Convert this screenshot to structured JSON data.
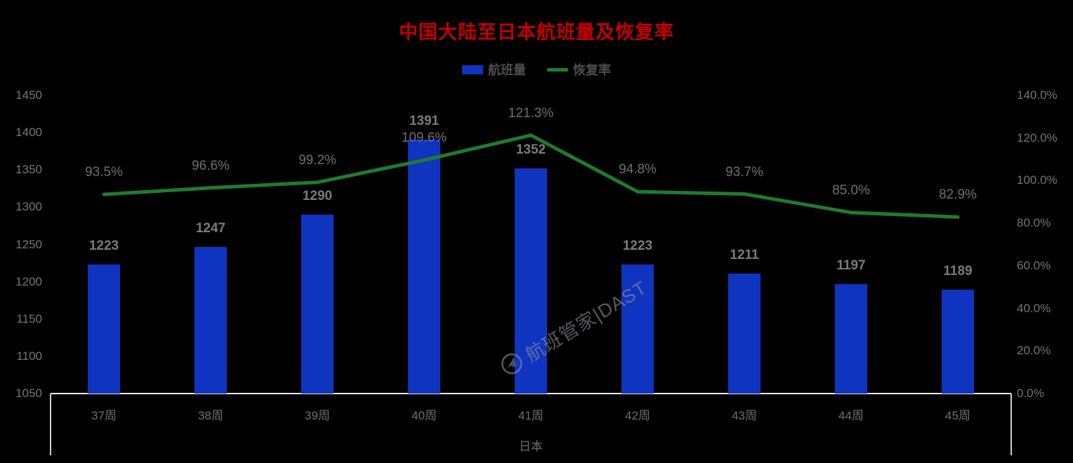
{
  "title": {
    "text": "中国大陆至日本航班量及恢复率",
    "color": "#c00000"
  },
  "legend": [
    {
      "label": "航班量",
      "type": "bar",
      "color": "#0F35C0"
    },
    {
      "label": "恢复率",
      "type": "line",
      "color": "#207A30"
    }
  ],
  "watermark": {
    "text": "航班管家|DAST"
  },
  "chart_data": {
    "type": "bar+line combo",
    "title": "中国大陆至日本航班量及恢复率",
    "categories": [
      "37周",
      "38周",
      "39周",
      "40周",
      "41周",
      "42周",
      "43周",
      "44周",
      "45周"
    ],
    "category_group_label": "日本",
    "series": [
      {
        "name": "航班量",
        "type": "bar",
        "axis": "left",
        "color": "#0F35C0",
        "values": [
          1223,
          1247,
          1290,
          1391,
          1352,
          1223,
          1211,
          1197,
          1189
        ],
        "labels": [
          "1223",
          "1247",
          "1290",
          "1391",
          "1352",
          "1223",
          "1211",
          "1197",
          "1189"
        ]
      },
      {
        "name": "恢复率",
        "type": "line",
        "axis": "right",
        "color": "#207A30",
        "values": [
          93.5,
          96.6,
          99.2,
          109.6,
          121.3,
          94.8,
          93.7,
          85.0,
          82.9
        ],
        "labels": [
          "93.5%",
          "96.6%",
          "99.2%",
          "109.6%",
          "121.3%",
          "94.8%",
          "93.7%",
          "85.0%",
          "82.9%"
        ]
      }
    ],
    "left_axis": {
      "min": 1050,
      "max": 1450,
      "step": 50,
      "ticks": [
        "1450",
        "1400",
        "1350",
        "1300",
        "1250",
        "1200",
        "1150",
        "1100",
        "1050"
      ]
    },
    "right_axis": {
      "min": 0,
      "max": 140,
      "step": 20,
      "ticks": [
        "140.0%",
        "120.0%",
        "100.0%",
        "80.0%",
        "60.0%",
        "40.0%",
        "20.0%",
        "0.0%"
      ]
    },
    "grid": false,
    "legend_position": "top",
    "background": "#000000"
  }
}
